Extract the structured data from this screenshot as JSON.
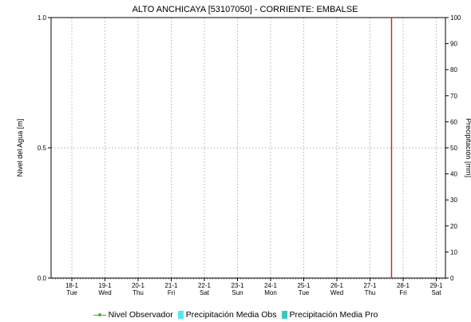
{
  "chart_data": {
    "type": "line",
    "title": "ALTO ANCHICAYA [53107050] - CORRIENTE: EMBALSE",
    "ylabel": "Nivel del Agua [m]",
    "ylabel_right": "Precipitación [mm]",
    "ylim": [
      0,
      1
    ],
    "ylim_right": [
      0,
      100
    ],
    "yticks": [
      "0.0",
      "0.5",
      "1.0"
    ],
    "yticks_right": [
      "0",
      "10",
      "20",
      "30",
      "40",
      "50",
      "60",
      "70",
      "80",
      "90",
      "100"
    ],
    "x_categories": [
      {
        "date": "18-1",
        "day": "Tue"
      },
      {
        "date": "19-1",
        "day": "Wed"
      },
      {
        "date": "20-1",
        "day": "Thu"
      },
      {
        "date": "21-1",
        "day": "Fri"
      },
      {
        "date": "22-1",
        "day": "Sat"
      },
      {
        "date": "23-1",
        "day": "Sun"
      },
      {
        "date": "24-1",
        "day": "Mon"
      },
      {
        "date": "25-1",
        "day": "Tue"
      },
      {
        "date": "26-1",
        "day": "Wed"
      },
      {
        "date": "27-1",
        "day": "Thu"
      },
      {
        "date": "28-1",
        "day": "Fri"
      },
      {
        "date": "29-1",
        "day": "Sat"
      }
    ],
    "current_time_marker": 9.65,
    "grid": true,
    "legend_position": "bottom",
    "series": [
      {
        "name": "Nivel Observador",
        "values": [],
        "color": "#4caf2a"
      },
      {
        "name": "Precipitación Media Obs",
        "values": [],
        "color": "#55e8f0"
      },
      {
        "name": "Precipitación Media Pro",
        "values": [],
        "color": "#3cc8c0"
      }
    ],
    "marker_color": "#d42020"
  }
}
